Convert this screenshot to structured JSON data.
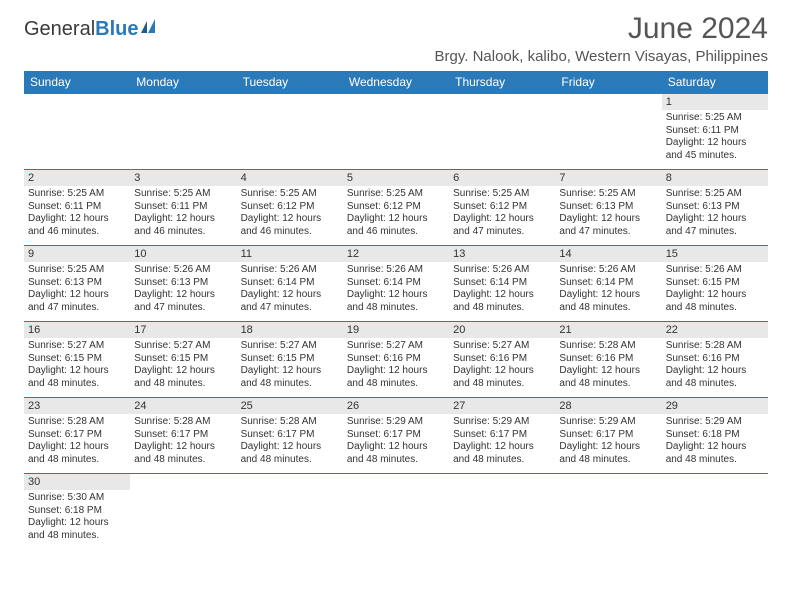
{
  "brand": {
    "part1": "General",
    "part2": "Blue"
  },
  "title": "June 2024",
  "location": "Brgy. Nalook, kalibo, Western Visayas, Philippines",
  "colors": {
    "header_bg": "#2a7ab9",
    "header_text": "#ffffff",
    "daynum_bg": "#e8e8e8",
    "cell_border": "#2a7ab9",
    "body_text": "#333333",
    "title_text": "#555555"
  },
  "weekdays": [
    "Sunday",
    "Monday",
    "Tuesday",
    "Wednesday",
    "Thursday",
    "Friday",
    "Saturday"
  ],
  "weeks": [
    [
      null,
      null,
      null,
      null,
      null,
      null,
      {
        "n": "1",
        "sr": "Sunrise: 5:25 AM",
        "ss": "Sunset: 6:11 PM",
        "dl": "Daylight: 12 hours and 45 minutes."
      }
    ],
    [
      {
        "n": "2",
        "sr": "Sunrise: 5:25 AM",
        "ss": "Sunset: 6:11 PM",
        "dl": "Daylight: 12 hours and 46 minutes."
      },
      {
        "n": "3",
        "sr": "Sunrise: 5:25 AM",
        "ss": "Sunset: 6:11 PM",
        "dl": "Daylight: 12 hours and 46 minutes."
      },
      {
        "n": "4",
        "sr": "Sunrise: 5:25 AM",
        "ss": "Sunset: 6:12 PM",
        "dl": "Daylight: 12 hours and 46 minutes."
      },
      {
        "n": "5",
        "sr": "Sunrise: 5:25 AM",
        "ss": "Sunset: 6:12 PM",
        "dl": "Daylight: 12 hours and 46 minutes."
      },
      {
        "n": "6",
        "sr": "Sunrise: 5:25 AM",
        "ss": "Sunset: 6:12 PM",
        "dl": "Daylight: 12 hours and 47 minutes."
      },
      {
        "n": "7",
        "sr": "Sunrise: 5:25 AM",
        "ss": "Sunset: 6:13 PM",
        "dl": "Daylight: 12 hours and 47 minutes."
      },
      {
        "n": "8",
        "sr": "Sunrise: 5:25 AM",
        "ss": "Sunset: 6:13 PM",
        "dl": "Daylight: 12 hours and 47 minutes."
      }
    ],
    [
      {
        "n": "9",
        "sr": "Sunrise: 5:25 AM",
        "ss": "Sunset: 6:13 PM",
        "dl": "Daylight: 12 hours and 47 minutes."
      },
      {
        "n": "10",
        "sr": "Sunrise: 5:26 AM",
        "ss": "Sunset: 6:13 PM",
        "dl": "Daylight: 12 hours and 47 minutes."
      },
      {
        "n": "11",
        "sr": "Sunrise: 5:26 AM",
        "ss": "Sunset: 6:14 PM",
        "dl": "Daylight: 12 hours and 47 minutes."
      },
      {
        "n": "12",
        "sr": "Sunrise: 5:26 AM",
        "ss": "Sunset: 6:14 PM",
        "dl": "Daylight: 12 hours and 48 minutes."
      },
      {
        "n": "13",
        "sr": "Sunrise: 5:26 AM",
        "ss": "Sunset: 6:14 PM",
        "dl": "Daylight: 12 hours and 48 minutes."
      },
      {
        "n": "14",
        "sr": "Sunrise: 5:26 AM",
        "ss": "Sunset: 6:14 PM",
        "dl": "Daylight: 12 hours and 48 minutes."
      },
      {
        "n": "15",
        "sr": "Sunrise: 5:26 AM",
        "ss": "Sunset: 6:15 PM",
        "dl": "Daylight: 12 hours and 48 minutes."
      }
    ],
    [
      {
        "n": "16",
        "sr": "Sunrise: 5:27 AM",
        "ss": "Sunset: 6:15 PM",
        "dl": "Daylight: 12 hours and 48 minutes."
      },
      {
        "n": "17",
        "sr": "Sunrise: 5:27 AM",
        "ss": "Sunset: 6:15 PM",
        "dl": "Daylight: 12 hours and 48 minutes."
      },
      {
        "n": "18",
        "sr": "Sunrise: 5:27 AM",
        "ss": "Sunset: 6:15 PM",
        "dl": "Daylight: 12 hours and 48 minutes."
      },
      {
        "n": "19",
        "sr": "Sunrise: 5:27 AM",
        "ss": "Sunset: 6:16 PM",
        "dl": "Daylight: 12 hours and 48 minutes."
      },
      {
        "n": "20",
        "sr": "Sunrise: 5:27 AM",
        "ss": "Sunset: 6:16 PM",
        "dl": "Daylight: 12 hours and 48 minutes."
      },
      {
        "n": "21",
        "sr": "Sunrise: 5:28 AM",
        "ss": "Sunset: 6:16 PM",
        "dl": "Daylight: 12 hours and 48 minutes."
      },
      {
        "n": "22",
        "sr": "Sunrise: 5:28 AM",
        "ss": "Sunset: 6:16 PM",
        "dl": "Daylight: 12 hours and 48 minutes."
      }
    ],
    [
      {
        "n": "23",
        "sr": "Sunrise: 5:28 AM",
        "ss": "Sunset: 6:17 PM",
        "dl": "Daylight: 12 hours and 48 minutes."
      },
      {
        "n": "24",
        "sr": "Sunrise: 5:28 AM",
        "ss": "Sunset: 6:17 PM",
        "dl": "Daylight: 12 hours and 48 minutes."
      },
      {
        "n": "25",
        "sr": "Sunrise: 5:28 AM",
        "ss": "Sunset: 6:17 PM",
        "dl": "Daylight: 12 hours and 48 minutes."
      },
      {
        "n": "26",
        "sr": "Sunrise: 5:29 AM",
        "ss": "Sunset: 6:17 PM",
        "dl": "Daylight: 12 hours and 48 minutes."
      },
      {
        "n": "27",
        "sr": "Sunrise: 5:29 AM",
        "ss": "Sunset: 6:17 PM",
        "dl": "Daylight: 12 hours and 48 minutes."
      },
      {
        "n": "28",
        "sr": "Sunrise: 5:29 AM",
        "ss": "Sunset: 6:17 PM",
        "dl": "Daylight: 12 hours and 48 minutes."
      },
      {
        "n": "29",
        "sr": "Sunrise: 5:29 AM",
        "ss": "Sunset: 6:18 PM",
        "dl": "Daylight: 12 hours and 48 minutes."
      }
    ],
    [
      {
        "n": "30",
        "sr": "Sunrise: 5:30 AM",
        "ss": "Sunset: 6:18 PM",
        "dl": "Daylight: 12 hours and 48 minutes."
      },
      null,
      null,
      null,
      null,
      null,
      null
    ]
  ]
}
